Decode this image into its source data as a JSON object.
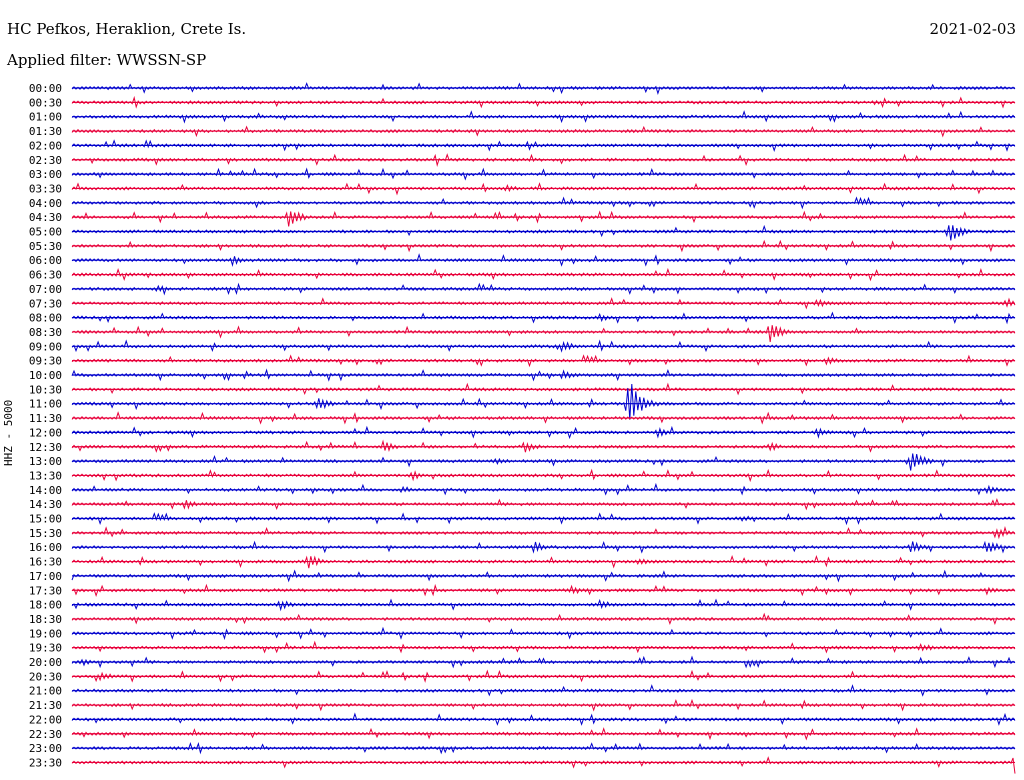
{
  "header": {
    "station": "HC Pefkos, Heraklion, Crete Is.",
    "date": "2021-02-03",
    "filter_label": "Applied filter: WWSSN-SP"
  },
  "chart_data": {
    "type": "line",
    "title": "HC Pefkos, Heraklion, Crete Is.",
    "ylabel": "HHZ - 5000",
    "traces": [
      "00:00",
      "00:30",
      "01:00",
      "01:30",
      "02:00",
      "02:30",
      "03:00",
      "03:30",
      "04:00",
      "04:30",
      "05:00",
      "05:30",
      "06:00",
      "06:30",
      "07:00",
      "07:30",
      "08:00",
      "08:30",
      "09:00",
      "09:30",
      "10:00",
      "10:30",
      "11:00",
      "11:30",
      "12:00",
      "12:30",
      "13:00",
      "13:30",
      "14:00",
      "14:30",
      "15:00",
      "15:30",
      "16:00",
      "16:30",
      "17:00",
      "17:30",
      "18:00",
      "18:30",
      "19:00",
      "19:30",
      "20:00",
      "20:30",
      "21:00",
      "21:30",
      "22:00",
      "22:30",
      "23:00",
      "23:30"
    ],
    "colors": [
      "#0000cc",
      "#e8003a"
    ],
    "events": [
      {
        "trace": "00:30",
        "t": 0.85,
        "amp": 3
      },
      {
        "trace": "03:30",
        "t": 0.46,
        "amp": 4
      },
      {
        "trace": "04:30",
        "t": 0.23,
        "amp": 10
      },
      {
        "trace": "05:00",
        "t": 0.93,
        "amp": 12
      },
      {
        "trace": "06:00",
        "t": 0.17,
        "amp": 5
      },
      {
        "trace": "07:00",
        "t": 0.09,
        "amp": 4
      },
      {
        "trace": "07:30",
        "t": 0.79,
        "amp": 5
      },
      {
        "trace": "07:30",
        "t": 0.99,
        "amp": 5
      },
      {
        "trace": "08:00",
        "t": 0.56,
        "amp": 4
      },
      {
        "trace": "08:30",
        "t": 0.74,
        "amp": 11
      },
      {
        "trace": "09:00",
        "t": 0.52,
        "amp": 6
      },
      {
        "trace": "09:30",
        "t": 0.8,
        "amp": 4
      },
      {
        "trace": "10:00",
        "t": 0.52,
        "amp": 5
      },
      {
        "trace": "11:00",
        "t": 0.26,
        "amp": 8
      },
      {
        "trace": "11:00",
        "t": 0.59,
        "amp": 28
      },
      {
        "trace": "12:00",
        "t": 0.62,
        "amp": 5
      },
      {
        "trace": "12:00",
        "t": 0.79,
        "amp": 6
      },
      {
        "trace": "12:30",
        "t": 0.33,
        "amp": 6
      },
      {
        "trace": "12:30",
        "t": 0.48,
        "amp": 6
      },
      {
        "trace": "12:30",
        "t": 0.74,
        "amp": 5
      },
      {
        "trace": "13:00",
        "t": 0.45,
        "amp": 4
      },
      {
        "trace": "13:00",
        "t": 0.89,
        "amp": 12
      },
      {
        "trace": "13:30",
        "t": 0.36,
        "amp": 5
      },
      {
        "trace": "14:00",
        "t": 0.35,
        "amp": 4
      },
      {
        "trace": "14:00",
        "t": 0.97,
        "amp": 5
      },
      {
        "trace": "14:30",
        "t": 0.12,
        "amp": 5
      },
      {
        "trace": "15:00",
        "t": 0.71,
        "amp": 4
      },
      {
        "trace": "15:30",
        "t": 0.98,
        "amp": 6
      },
      {
        "trace": "16:00",
        "t": 0.49,
        "amp": 6
      },
      {
        "trace": "16:00",
        "t": 0.89,
        "amp": 7
      },
      {
        "trace": "16:00",
        "t": 0.97,
        "amp": 9
      },
      {
        "trace": "16:30",
        "t": 0.25,
        "amp": 8
      },
      {
        "trace": "16:30",
        "t": 0.6,
        "amp": 4
      },
      {
        "trace": "17:30",
        "t": 0.53,
        "amp": 5
      },
      {
        "trace": "17:30",
        "t": 0.97,
        "amp": 5
      },
      {
        "trace": "18:00",
        "t": 0.22,
        "amp": 6
      },
      {
        "trace": "18:00",
        "t": 0.56,
        "amp": 5
      },
      {
        "trace": "19:30",
        "t": 0.9,
        "amp": 5
      },
      {
        "trace": "20:00",
        "t": 0.01,
        "amp": 4
      },
      {
        "trace": "20:30",
        "t": 0.03,
        "amp": 5
      },
      {
        "trace": "23:30",
        "t": 1.0,
        "amp": 14
      }
    ]
  }
}
